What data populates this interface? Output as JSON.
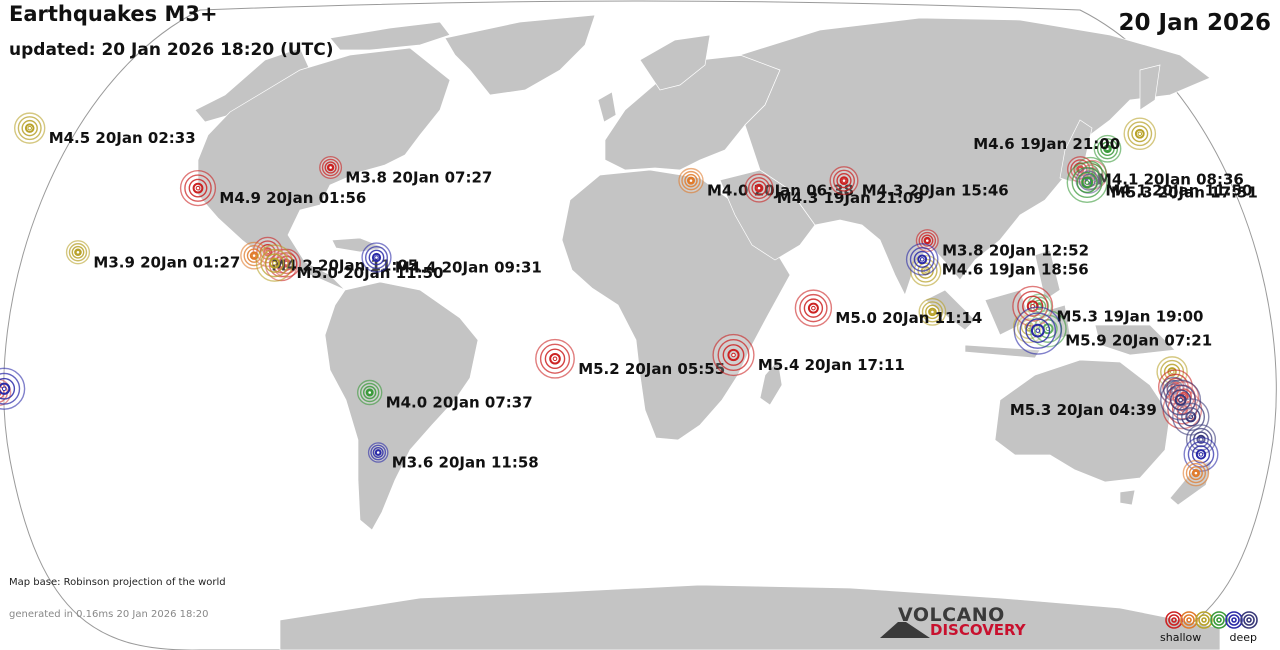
{
  "header": {
    "title": "Earthquakes M3+",
    "updated": "updated: 20 Jan 2026 18:20 (UTC)",
    "date": "20 Jan 2026"
  },
  "footer": {
    "map_base": "Map base: Robinson projection of the world",
    "generated": "generated in 0.16ms 20 Jan 2026 18:20"
  },
  "logo": {
    "top": "VOLCANO",
    "bottom": "DISCOVERY"
  },
  "legend": {
    "shallow": "shallow",
    "deep": "deep",
    "colors": [
      "#cc2222",
      "#e07a2a",
      "#b8a22a",
      "#3a9a3a",
      "#2a2aa8",
      "#383878"
    ]
  },
  "colors": {
    "land": "#c4c4c4",
    "ocean": "#ffffff",
    "depth_red": "#cc2222",
    "depth_orange": "#e07a2a",
    "depth_yellow": "#b8a22a",
    "depth_green": "#3a9a3a",
    "depth_blue": "#2a2aa8",
    "depth_navy": "#383878"
  },
  "quakes": [
    {
      "label": "M4.5 20Jan 02:33",
      "mag": 4.5,
      "lat": 52.5,
      "lon": -169.5,
      "color": "#b8a22a"
    },
    {
      "label": "M3.8 20Jan 07:27",
      "mag": 3.8,
      "lat": 42.0,
      "lon": -81.0,
      "color": "#cc2222"
    },
    {
      "label": "M4.9 20Jan 01:56",
      "mag": 4.9,
      "lat": 36.5,
      "lon": -120.0,
      "color": "#cc2222"
    },
    {
      "label": "M3.9 20Jan 01:27",
      "mag": 3.9,
      "lat": 19.4,
      "lon": -155.3,
      "color": "#b8a22a"
    },
    {
      "label": "M4.2 20Jan 11:05",
      "mag": 4.2,
      "lat": 18.5,
      "lon": -103.5,
      "color": "#e07a2a"
    },
    {
      "label": "M5.0 20Jan 11:50",
      "mag": 5.0,
      "lat": 16.5,
      "lon": -97.5,
      "color": "#b8a22a"
    },
    {
      "label": "M4.4 20Jan 09:31",
      "mag": 4.4,
      "lat": 18.0,
      "lon": -67.5,
      "color": "#2a2aa8"
    },
    {
      "label": "M4.0 20Jan 07:37",
      "mag": 4.0,
      "lat": -18.0,
      "lon": -69.5,
      "color": "#3a9a3a"
    },
    {
      "label": "M3.6 20Jan 11:58",
      "mag": 3.6,
      "lat": -34.0,
      "lon": -67.0,
      "color": "#2a2aa8"
    },
    {
      "label": "M4.0 20Jan 06:38",
      "mag": 4.0,
      "lat": 38.5,
      "lon": 25.0,
      "color": "#e07a2a"
    },
    {
      "label": "M4.3 19Jan 21:09",
      "mag": 4.3,
      "lat": 36.5,
      "lon": 45.0,
      "color": "#cc2222"
    },
    {
      "label": "M4.3 20Jan 15:46",
      "mag": 4.3,
      "lat": 38.5,
      "lon": 70.0,
      "color": "#cc2222"
    },
    {
      "label": "M5.2 20Jan 05:55",
      "mag": 5.2,
      "lat": -9.0,
      "lon": -15.0,
      "color": "#cc2222"
    },
    {
      "label": "M5.4 20Jan 17:11",
      "mag": 5.4,
      "lat": -8.0,
      "lon": 37.5,
      "color": "#cc2222"
    },
    {
      "label": "M5.0 20Jan 11:14",
      "mag": 5.0,
      "lat": 4.5,
      "lon": 61.0,
      "color": "#cc2222"
    },
    {
      "label": "M3.8 20Jan 12:52",
      "mag": 3.8,
      "lat": 22.5,
      "lon": 94.5,
      "color": "#cc2222"
    },
    {
      "label": "M4.6 19Jan 18:56",
      "mag": 4.6,
      "lat": 17.5,
      "lon": 93.0,
      "color": "#2a2aa8"
    },
    {
      "label": "M4.1 20Jan 08:36",
      "mag": 4.1,
      "lat": 41.5,
      "lon": 139.5,
      "color": "#cc2222"
    },
    {
      "label": "M4.1 20Jan 11:50",
      "mag": 4.1,
      "lat": 38.5,
      "lon": 142.0,
      "color": "#383878"
    },
    {
      "label": "M5.3 20Jan 17:51",
      "mag": 5.3,
      "lat": 38.0,
      "lon": 141.5,
      "color": "#3a9a3a"
    },
    {
      "label": "M4.6 19Jan 21:00",
      "mag": 4.6,
      "lat": 51.0,
      "lon": 157.0,
      "color": "#b8a22a"
    },
    {
      "label": "M5.3 19Jan 19:00",
      "mag": 5.3,
      "lat": 5.0,
      "lon": 125.5,
      "color": "#cc2222"
    },
    {
      "label": "M5.9 20Jan 07:21",
      "mag": 5.9,
      "lat": -1.5,
      "lon": 127.0,
      "color": "#2a2aa8"
    },
    {
      "label": "M5.3 20Jan 04:39",
      "mag": 5.3,
      "lat": -20.0,
      "lon": 169.0,
      "color": "#383878"
    }
  ],
  "extra_markers": [
    {
      "mag": 4.5,
      "lat": 14.5,
      "lon": 94.0,
      "color": "#b8a22a"
    },
    {
      "mag": 4.2,
      "lat": 3.5,
      "lon": 96.0,
      "color": "#b8a22a"
    },
    {
      "mag": 4.0,
      "lat": 5.0,
      "lon": 127.5,
      "color": "#3a9a3a"
    },
    {
      "mag": 4.6,
      "lat": -0.5,
      "lon": 124.5,
      "color": "#b8a22a"
    },
    {
      "mag": 5.0,
      "lat": -1.0,
      "lon": 130.0,
      "color": "#3a9a3a"
    },
    {
      "mag": 4.2,
      "lat": 47.0,
      "lon": 147.5,
      "color": "#3a9a3a"
    },
    {
      "mag": 4.4,
      "lat": 40.0,
      "lon": 143.0,
      "color": "#cc2222"
    },
    {
      "mag": 4.6,
      "lat": 40.5,
      "lon": 142.5,
      "color": "#3a9a3a"
    },
    {
      "mag": 4.4,
      "lat": 19.5,
      "lon": -99.5,
      "color": "#cc2222"
    },
    {
      "mag": 4.6,
      "lat": 16.0,
      "lon": -95.5,
      "color": "#cc2222"
    },
    {
      "mag": 4.3,
      "lat": 16.5,
      "lon": -94.0,
      "color": "#cc2222"
    },
    {
      "mag": 4.5,
      "lat": -12.5,
      "lon": 166.5,
      "color": "#b8a22a"
    },
    {
      "mag": 4.8,
      "lat": -16.5,
      "lon": 167.5,
      "color": "#cc2222"
    },
    {
      "mag": 4.2,
      "lat": -17.5,
      "lon": 167.0,
      "color": "#383878"
    },
    {
      "mag": 5.2,
      "lat": -22.5,
      "lon": 169.5,
      "color": "#cc2222"
    },
    {
      "mag": 4.4,
      "lat": -19.0,
      "lon": 170.0,
      "color": "#cc2222"
    },
    {
      "mag": 5.0,
      "lat": -24.5,
      "lon": 172.0,
      "color": "#383878"
    },
    {
      "mag": 4.2,
      "lat": -18.0,
      "lon": -179.0,
      "color": "#cc2222"
    },
    {
      "mag": 5.4,
      "lat": -17.0,
      "lon": -177.0,
      "color": "#2a2aa8"
    },
    {
      "mag": 4.4,
      "lat": -30.5,
      "lon": 175.0,
      "color": "#383878"
    },
    {
      "mag": 4.8,
      "lat": -34.5,
      "lon": 175.0,
      "color": "#2a2aa8"
    },
    {
      "mag": 4.1,
      "lat": -39.5,
      "lon": 173.5,
      "color": "#e07a2a"
    }
  ]
}
